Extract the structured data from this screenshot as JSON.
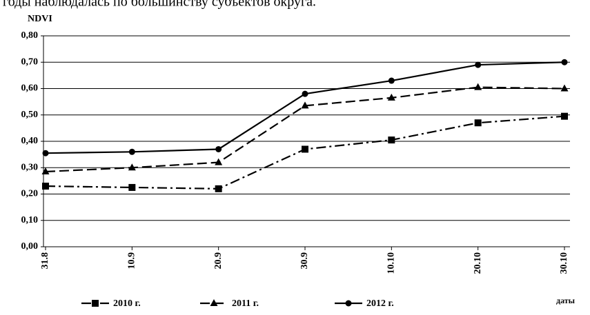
{
  "text_above": "годы наблюдалась по большинству субъектов округа.",
  "chart_data": {
    "type": "line",
    "y_label": "NDVI",
    "x_label": "даты",
    "categories": [
      "31.8",
      "10.9",
      "20.9",
      "30.9",
      "10.10",
      "20.10",
      "30.10"
    ],
    "series": [
      {
        "name": "2010 г.",
        "color": "#000000",
        "dash": "14 5 3 5",
        "marker": "square",
        "values": [
          0.23,
          0.225,
          0.22,
          0.37,
          0.405,
          0.47,
          0.495
        ]
      },
      {
        "name": "2011 г.",
        "color": "#000000",
        "dash": "14 6",
        "marker": "triangle",
        "values": [
          0.285,
          0.3,
          0.32,
          0.535,
          0.565,
          0.605,
          0.6
        ]
      },
      {
        "name": "2012 г.",
        "color": "#000000",
        "dash": "none",
        "marker": "circle",
        "values": [
          0.355,
          0.36,
          0.37,
          0.58,
          0.63,
          0.69,
          0.7
        ]
      }
    ],
    "ylim": [
      0,
      0.8
    ],
    "yticks": [
      {
        "value": 0,
        "label": "0,00"
      },
      {
        "value": 0.1,
        "label": "0,10"
      },
      {
        "value": 0.2,
        "label": "0,20"
      },
      {
        "value": 0.3,
        "label": "0,30"
      },
      {
        "value": 0.4,
        "label": "0,40"
      },
      {
        "value": 0.5,
        "label": "0,50"
      },
      {
        "value": 0.6,
        "label": "0,60"
      },
      {
        "value": 0.7,
        "label": "0,70"
      },
      {
        "value": 0.8,
        "label": "0,80"
      }
    ],
    "grid": true
  }
}
